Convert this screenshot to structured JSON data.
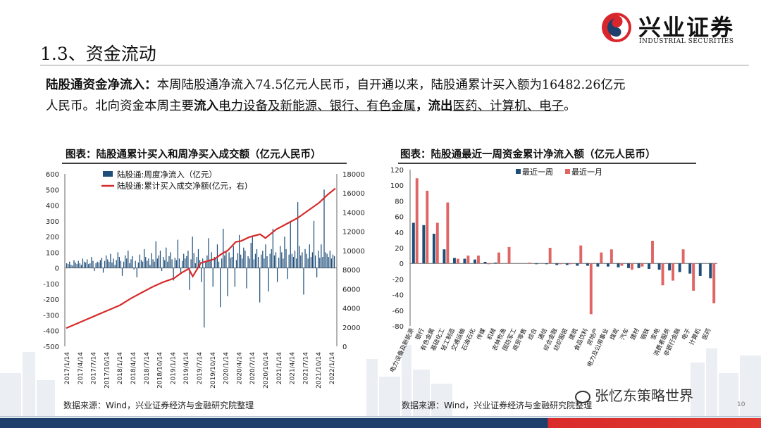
{
  "brand": {
    "name_cn": "兴业证券",
    "name_en": "INDUSTRIAL SECURITIES"
  },
  "section_title": "1.3、资金流动",
  "paragraph": {
    "lead": "陆股通资金净流入：",
    "line1_text": "本周陆股通净流入74.5亿元人民币，自开通以来，陆股通累计买入额为16482.26亿元",
    "line2_start": "人民币。北向资金本周主要",
    "inflow_label": "流入",
    "inflow_sectors": "电力设备及新能源、银行、有色金属",
    "sep": "，",
    "outflow_label": "流出",
    "outflow_sectors": "医药、计算机、电子",
    "end": "。"
  },
  "left_chart": {
    "title": "图表：陆股通累计买入和周净买入成交额（亿元人民币）",
    "source": "数据来源：Wind，兴业证券经济与金融研究院整理"
  },
  "right_chart": {
    "title": "图表：陆股通最近一周资金累计净流入额（亿元人民币）",
    "source": "数据来源：Wind，兴业证券经济与金融研究院整理"
  },
  "page_number": "10",
  "watermark": "张忆东策略世界",
  "chart_data": [
    {
      "type": "bar",
      "series": [
        {
          "name": "陆股通:周度净流入（亿元）",
          "axis": "left",
          "color": "#1f4e79",
          "values": [
            30,
            25,
            40,
            20,
            15,
            50,
            35,
            25,
            45,
            30,
            20,
            60,
            40,
            35,
            55,
            25,
            30,
            70,
            45,
            -20,
            30,
            40,
            35,
            50,
            65,
            -30,
            45,
            80,
            55,
            40,
            90,
            35,
            60,
            20,
            50,
            100,
            70,
            45,
            -50,
            40,
            80,
            60,
            110,
            30,
            55,
            75,
            -10,
            45,
            -60,
            35,
            85,
            50,
            40,
            120,
            70,
            45,
            60,
            20,
            95,
            55,
            40,
            170,
            60,
            80,
            110,
            -20,
            70,
            50,
            130,
            40,
            75,
            100,
            55,
            -80,
            65,
            50,
            180,
            60,
            -40,
            45,
            90,
            60,
            75,
            110,
            -140,
            55,
            200,
            95,
            30,
            70,
            120,
            50,
            -90,
            60,
            -380,
            45,
            80,
            190,
            55,
            100,
            -120,
            70,
            60,
            150,
            40,
            -250,
            60,
            250,
            80,
            110,
            -180,
            100,
            65,
            70,
            140,
            -120,
            50,
            95,
            210,
            85,
            60,
            130,
            110,
            -130,
            75,
            60,
            160,
            200,
            55,
            90,
            120,
            70,
            -220,
            85,
            110,
            60,
            150,
            75,
            -150,
            90,
            120,
            250,
            80,
            100,
            -90,
            65,
            140,
            100,
            60,
            200,
            120,
            -70,
            85,
            300,
            90,
            70,
            110,
            60,
            420,
            140,
            80,
            100,
            -170,
            120,
            90,
            60,
            150,
            70,
            100,
            300,
            80,
            -60,
            110,
            65,
            150,
            70,
            500,
            100,
            90,
            70,
            110,
            60,
            85,
            75
          ]
        },
        {
          "name": "陆股通:累计买入成交净额(亿元，右)",
          "axis": "right",
          "color": "#d62b2b",
          "type": "line"
        }
      ],
      "x_tick_labels": [
        "2017/1/14",
        "2017/4/14",
        "2017/7/14",
        "2017/10/14",
        "2018/1/14",
        "2018/4/14",
        "2018/7/14",
        "2018/10/14",
        "2019/1/14",
        "2019/4/14",
        "2019/7/14",
        "2019/10/14",
        "2020/1/14",
        "2020/4/14",
        "2020/7/14",
        "2020/10/14",
        "2021/1/14",
        "2021/4/14",
        "2021/7/14",
        "2021/10/14",
        "2022/1/14"
      ],
      "y_left": {
        "ticks": [
          -500,
          -400,
          -300,
          -200,
          -100,
          0,
          100,
          200,
          300,
          400,
          500,
          600
        ],
        "range": [
          -500,
          600
        ]
      },
      "y_right": {
        "ticks": [
          0,
          2000,
          4000,
          6000,
          8000,
          10000,
          12000,
          14000,
          16000,
          18000
        ],
        "range": [
          0,
          18000
        ]
      },
      "cumulative_points": [
        [
          0,
          1900
        ],
        [
          0.05,
          2500
        ],
        [
          0.1,
          3100
        ],
        [
          0.15,
          3700
        ],
        [
          0.2,
          4300
        ],
        [
          0.24,
          5000
        ],
        [
          0.28,
          5600
        ],
        [
          0.32,
          6200
        ],
        [
          0.36,
          6700
        ],
        [
          0.4,
          7100
        ],
        [
          0.43,
          7700
        ],
        [
          0.455,
          8100
        ],
        [
          0.47,
          7300
        ],
        [
          0.5,
          8700
        ],
        [
          0.55,
          9100
        ],
        [
          0.58,
          9700
        ],
        [
          0.6,
          10000
        ],
        [
          0.63,
          10900
        ],
        [
          0.65,
          11000
        ],
        [
          0.68,
          11400
        ],
        [
          0.72,
          11700
        ],
        [
          0.74,
          11300
        ],
        [
          0.78,
          12200
        ],
        [
          0.82,
          12800
        ],
        [
          0.86,
          13400
        ],
        [
          0.9,
          14200
        ],
        [
          0.94,
          15000
        ],
        [
          0.97,
          15800
        ],
        [
          1,
          16482
        ]
      ],
      "grid": false,
      "legend": "top-left"
    },
    {
      "type": "bar",
      "categories": [
        "电力设备及新能源",
        "银行",
        "有色金属",
        "基础化工",
        "轻工制造",
        "交通运输",
        "石油石化",
        "传媒",
        "机械",
        "农林牧渔",
        "国防军工",
        "商贸零售",
        "综合",
        "通信",
        "综合金融",
        "纺织服装",
        "建筑",
        "食品饮料",
        "房地产",
        "电力及公用事业",
        "煤炭",
        "汽车",
        "建材",
        "钢铁",
        "家电",
        "消费者服务",
        "非银行金融",
        "电子",
        "计算机",
        "医药"
      ],
      "series": [
        {
          "name": "最近一周",
          "color": "#1f4e79",
          "values": [
            52,
            49,
            38,
            18,
            7,
            6,
            5,
            2,
            1,
            0,
            0,
            0,
            -1,
            -1,
            -2,
            -2,
            -3,
            -3,
            -4,
            -4,
            -5,
            -6,
            -6,
            -7,
            -8,
            -9,
            -11,
            -13,
            -16,
            -19
          ]
        },
        {
          "name": "最近一月",
          "color": "#e06565",
          "values": [
            109,
            93,
            52,
            78,
            6,
            10,
            10,
            -1,
            14,
            21,
            0,
            1,
            0,
            20,
            -1,
            -1,
            23,
            -65,
            14,
            18,
            -3,
            -8,
            -4,
            29,
            -28,
            -22,
            18,
            -35,
            0,
            -51
          ]
        }
      ],
      "y_ticks": [
        -80,
        -60,
        -40,
        -20,
        0,
        20,
        40,
        60,
        80,
        100,
        120
      ],
      "ylim": [
        -80,
        120
      ],
      "grid": false,
      "legend": "top-left"
    }
  ]
}
